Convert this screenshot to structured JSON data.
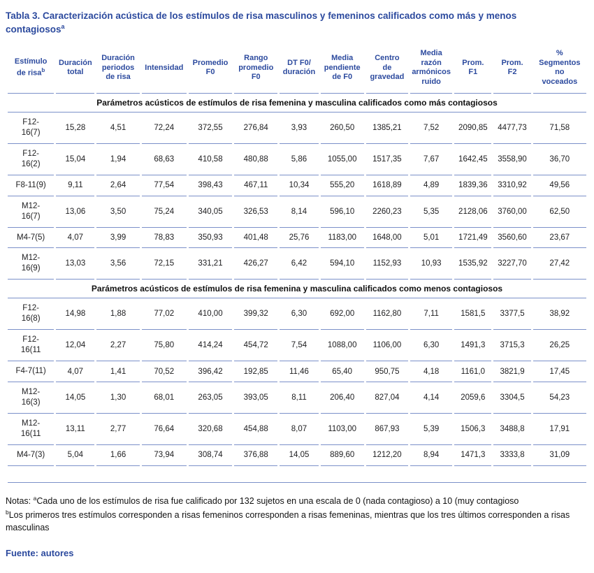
{
  "title": {
    "text": "Tabla 3. Caracterización acústica de los estímulos de risa masculinos y femeninos calificados como más y menos contagiosos",
    "sup": "a"
  },
  "columns": [
    {
      "label": "Estímulo\nde risa",
      "sup": "b"
    },
    {
      "label": "Duración\ntotal"
    },
    {
      "label": "Duración\nperiodos\nde risa"
    },
    {
      "label": "Intensidad"
    },
    {
      "label": "Promedio\nF0"
    },
    {
      "label": "Rango\npromedio\nF0"
    },
    {
      "label": "DT F0/\nduración"
    },
    {
      "label": "Media\npendiente\nde F0"
    },
    {
      "label": "Centro\nde\ngravedad"
    },
    {
      "label": "Media\nrazón\narmónicos\nruido"
    },
    {
      "label": "Prom.\nF1"
    },
    {
      "label": "Prom.\nF2"
    },
    {
      "label": "%\nSegmentos\nno\nvoceados"
    }
  ],
  "sections": [
    {
      "header": "Parámetros acústicos de estímulos de risa femenina y masculina calificados como más contagiosos",
      "rows": [
        {
          "label": "F12-\n16(7)",
          "values": [
            "15,28",
            "4,51",
            "72,24",
            "372,55",
            "276,84",
            "3,93",
            "260,50",
            "1385,21",
            "7,52",
            "2090,85",
            "4477,73",
            "71,58"
          ]
        },
        {
          "label": "F12-\n16(2)",
          "values": [
            "15,04",
            "1,94",
            "68,63",
            "410,58",
            "480,88",
            "5,86",
            "1055,00",
            "1517,35",
            "7,67",
            "1642,45",
            "3558,90",
            "36,70"
          ]
        },
        {
          "label": "F8-11(9)",
          "values": [
            "9,11",
            "2,64",
            "77,54",
            "398,43",
            "467,11",
            "10,34",
            "555,20",
            "1618,89",
            "4,89",
            "1839,36",
            "3310,92",
            "49,56"
          ]
        },
        {
          "label": "M12-\n16(7)",
          "values": [
            "13,06",
            "3,50",
            "75,24",
            "340,05",
            "326,53",
            "8,14",
            "596,10",
            "2260,23",
            "5,35",
            "2128,06",
            "3760,00",
            "62,50"
          ]
        },
        {
          "label": "M4-7(5)",
          "values": [
            "4,07",
            "3,99",
            "78,83",
            "350,93",
            "401,48",
            "25,76",
            "1183,00",
            "1648,00",
            "5,01",
            "1721,49",
            "3560,60",
            "23,67"
          ]
        },
        {
          "label": "M12-\n16(9)",
          "values": [
            "13,03",
            "3,56",
            "72,15",
            "331,21",
            "426,27",
            "6,42",
            "594,10",
            "1152,93",
            "10,93",
            "1535,92",
            "3227,70",
            "27,42"
          ]
        }
      ]
    },
    {
      "header": "Parámetros acústicos de estímulos de risa femenina y masculina calificados como menos contagiosos",
      "rows": [
        {
          "label": "F12-\n16(8)",
          "values": [
            "14,98",
            "1,88",
            "77,02",
            "410,00",
            "399,32",
            "6,30",
            "692,00",
            "1162,80",
            "7,11",
            "1581,5",
            "3377,5",
            "38,92"
          ]
        },
        {
          "label": "F12-\n16(11",
          "values": [
            "12,04",
            "2,27",
            "75,80",
            "414,24",
            "454,72",
            "7,54",
            "1088,00",
            "1106,00",
            "6,30",
            "1491,3",
            "3715,3",
            "26,25"
          ]
        },
        {
          "label": "F4-7(11)",
          "values": [
            "4,07",
            "1,41",
            "70,52",
            "396,42",
            "192,85",
            "11,46",
            "65,40",
            "950,75",
            "4,18",
            "1161,0",
            "3821,9",
            "17,45"
          ]
        },
        {
          "label": "M12-\n16(3)",
          "values": [
            "14,05",
            "1,30",
            "68,01",
            "263,05",
            "393,05",
            "8,11",
            "206,40",
            "827,04",
            "4,14",
            "2059,6",
            "3304,5",
            "54,23"
          ]
        },
        {
          "label": "M12-\n16(11",
          "values": [
            "13,11",
            "2,77",
            "76,64",
            "320,68",
            "454,88",
            "8,07",
            "1103,00",
            "867,93",
            "5,39",
            "1506,3",
            "3488,8",
            "17,91"
          ]
        },
        {
          "label": "M4-7(3)",
          "values": [
            "5,04",
            "1,66",
            "73,94",
            "308,74",
            "376,88",
            "14,05",
            "889,60",
            "1212,20",
            "8,94",
            "1471,3",
            "3333,8",
            "31,09"
          ]
        }
      ]
    }
  ],
  "notes": {
    "prefix": "Notas: ",
    "note_a_sup": "a",
    "note_a_text": "Cada uno de los estímulos de risa fue calificado por 132 sujetos en una escala de 0 (nada contagioso) a 10 (muy contagioso",
    "note_b_sup": "b",
    "note_b_text": "Los primeros tres estímulos corresponden a risas femeninos corresponden a risas femeninas, mientras que los tres últimos corresponden a risas masculinas"
  },
  "source": "Fuente: autores",
  "colors": {
    "title_blue": "#2c4a9e",
    "border_blue": "#7b90c9",
    "body_text": "#1d1d1f"
  }
}
